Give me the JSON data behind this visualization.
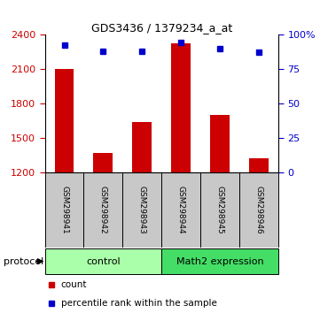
{
  "title": "GDS3436 / 1379234_a_at",
  "samples": [
    "GSM298941",
    "GSM298942",
    "GSM298943",
    "GSM298944",
    "GSM298945",
    "GSM298946"
  ],
  "counts": [
    2100,
    1370,
    1640,
    2320,
    1700,
    1320
  ],
  "percentile_ranks": [
    92,
    88,
    88,
    94,
    90,
    87
  ],
  "group_names": [
    "control",
    "Math2 expression"
  ],
  "ylim_left": [
    1200,
    2400
  ],
  "ylim_right": [
    0,
    100
  ],
  "yticks_left": [
    1200,
    1500,
    1800,
    2100,
    2400
  ],
  "yticks_right": [
    0,
    25,
    50,
    75,
    100
  ],
  "ytick_labels_right": [
    "0",
    "25",
    "50",
    "75",
    "100%"
  ],
  "bar_color": "#CC0000",
  "dot_color": "#0000CC",
  "bar_width": 0.5,
  "count_scale_min": 1200,
  "count_scale_max": 2400,
  "tick_label_color_left": "#CC0000",
  "tick_label_color_right": "#0000CC",
  "legend_count_label": "count",
  "legend_pct_label": "percentile rank within the sample",
  "protocol_label": "protocol",
  "control_bg": "#AAFFAA",
  "math2_bg": "#44DD66",
  "sample_box_color": "#C8C8C8",
  "n_control": 3,
  "n_math2": 3
}
